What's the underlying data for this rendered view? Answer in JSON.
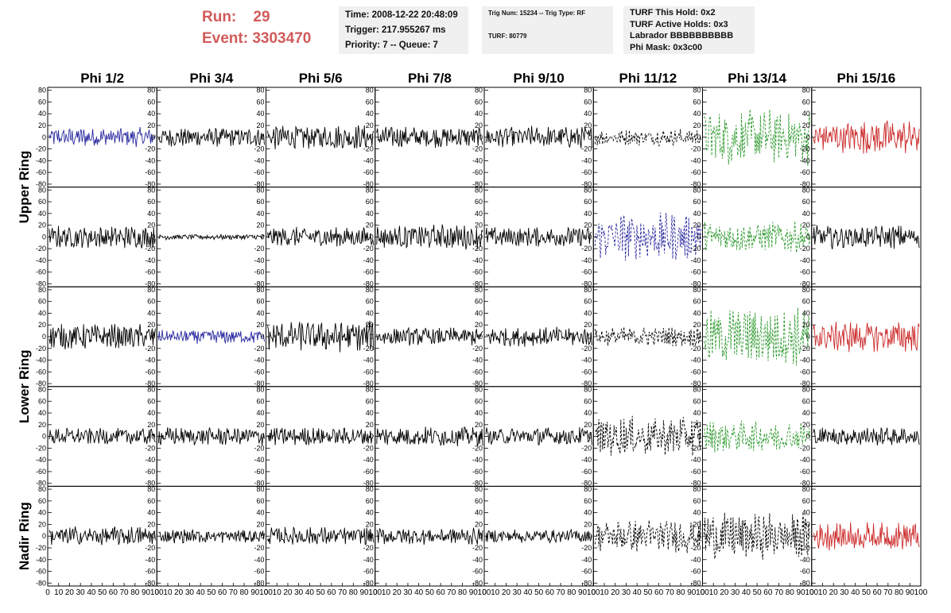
{
  "header": {
    "run_label": "Run:",
    "run_value": "29",
    "event_label": "Event:",
    "event_value": "3303470",
    "time_line": "Time: 2008-12-22 20:48:09",
    "trigger_line": "Trigger: 217.955267 ms",
    "priority_line": "Priority: 7 -- Queue: 7",
    "trig_line": "Trig Num: 15234 -- Trig Type: RF",
    "turf_line": "TURF: 80779",
    "turf_hold_line": "TURF This Hold: 0x2",
    "turf_active_line": "TURF Active Holds: 0x3",
    "labrador_line": "Labrador BBBBBBBBBB",
    "phi_mask_line": "Phi Mask: 0x3c00"
  },
  "colors": {
    "header_red": "#d25a5a",
    "black": "#000000",
    "blue": "#2a2aa0",
    "green": "#2e9a2e",
    "red": "#cc2a2a"
  },
  "chart_data": {
    "type": "line",
    "columns": [
      "Phi 1/2",
      "Phi 3/4",
      "Phi 5/6",
      "Phi 7/8",
      "Phi 9/10",
      "Phi 11/12",
      "Phi 13/14",
      "Phi 15/16"
    ],
    "ring_labels": [
      "Upper Ring",
      "Lower Ring",
      "Nadir Ring"
    ],
    "rows": 5,
    "ylim": [
      -85,
      85
    ],
    "xlim": [
      0,
      100
    ],
    "yticks": [
      -80,
      -60,
      -40,
      -20,
      0,
      20,
      40,
      60,
      80
    ],
    "xticks": [
      0,
      10,
      20,
      30,
      40,
      50,
      60,
      70,
      80,
      90,
      100
    ],
    "panels": [
      [
        {
          "color": "blue",
          "style": "solid",
          "amplitude": 14
        },
        {
          "color": "black",
          "style": "solid",
          "amplitude": 14
        },
        {
          "color": "black",
          "style": "solid",
          "amplitude": 18
        },
        {
          "color": "black",
          "style": "solid",
          "amplitude": 15
        },
        {
          "color": "black",
          "style": "solid",
          "amplitude": 16
        },
        {
          "color": "black",
          "style": "dashed",
          "amplitude": 12
        },
        {
          "color": "green",
          "style": "dashed",
          "amplitude": 40
        },
        {
          "color": "red",
          "style": "solid",
          "amplitude": 25
        }
      ],
      [
        {
          "color": "black",
          "style": "solid",
          "amplitude": 16
        },
        {
          "color": "black",
          "style": "solid",
          "amplitude": 4
        },
        {
          "color": "black",
          "style": "solid",
          "amplitude": 14
        },
        {
          "color": "black",
          "style": "solid",
          "amplitude": 18
        },
        {
          "color": "black",
          "style": "solid",
          "amplitude": 14
        },
        {
          "color": "blue",
          "style": "dashed",
          "amplitude": 34
        },
        {
          "color": "green",
          "style": "dashed",
          "amplitude": 22
        },
        {
          "color": "black",
          "style": "solid",
          "amplitude": 17
        }
      ],
      [
        {
          "color": "black",
          "style": "solid",
          "amplitude": 18
        },
        {
          "color": "blue",
          "style": "solid",
          "amplitude": 10
        },
        {
          "color": "black",
          "style": "solid",
          "amplitude": 22
        },
        {
          "color": "black",
          "style": "solid",
          "amplitude": 13
        },
        {
          "color": "black",
          "style": "solid",
          "amplitude": 14
        },
        {
          "color": "black",
          "style": "dashed",
          "amplitude": 14
        },
        {
          "color": "green",
          "style": "dashed",
          "amplitude": 42
        },
        {
          "color": "red",
          "style": "solid",
          "amplitude": 22
        }
      ],
      [
        {
          "color": "black",
          "style": "solid",
          "amplitude": 12
        },
        {
          "color": "black",
          "style": "solid",
          "amplitude": 13
        },
        {
          "color": "black",
          "style": "solid",
          "amplitude": 13
        },
        {
          "color": "black",
          "style": "solid",
          "amplitude": 14
        },
        {
          "color": "black",
          "style": "solid",
          "amplitude": 13
        },
        {
          "color": "black",
          "style": "dashed",
          "amplitude": 28
        },
        {
          "color": "green",
          "style": "dashed",
          "amplitude": 22
        },
        {
          "color": "black",
          "style": "solid",
          "amplitude": 13
        }
      ],
      [
        {
          "color": "black",
          "style": "solid",
          "amplitude": 14
        },
        {
          "color": "black",
          "style": "solid",
          "amplitude": 10
        },
        {
          "color": "black",
          "style": "solid",
          "amplitude": 13
        },
        {
          "color": "black",
          "style": "solid",
          "amplitude": 12
        },
        {
          "color": "black",
          "style": "solid",
          "amplitude": 10
        },
        {
          "color": "black",
          "style": "dashed",
          "amplitude": 24
        },
        {
          "color": "black",
          "style": "dashed",
          "amplitude": 33
        },
        {
          "color": "red",
          "style": "solid",
          "amplitude": 20
        }
      ]
    ]
  }
}
